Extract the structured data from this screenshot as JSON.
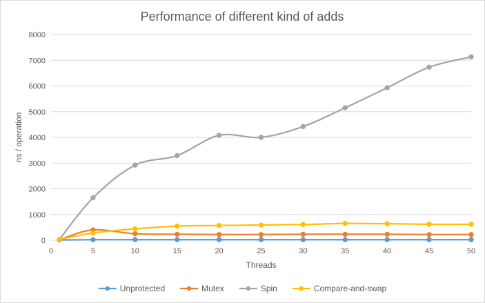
{
  "chart_data": {
    "type": "line",
    "title": "Performance of different kind of adds",
    "xlabel": "Threads",
    "ylabel": "ns / operation",
    "x": [
      1,
      5,
      10,
      15,
      20,
      25,
      30,
      35,
      40,
      45,
      50
    ],
    "xticks": [
      0,
      5,
      10,
      15,
      20,
      25,
      30,
      35,
      40,
      45,
      50
    ],
    "xlim": [
      0,
      50
    ],
    "yticks": [
      0,
      1000,
      2000,
      3000,
      4000,
      5000,
      6000,
      7000,
      8000
    ],
    "ylim": [
      0,
      8000
    ],
    "grid": "horizontal",
    "legend_position": "bottom",
    "smooth": true,
    "series": [
      {
        "name": "Unprotected",
        "color": "#5b9bd5",
        "values": [
          10,
          20,
          20,
          20,
          20,
          20,
          20,
          20,
          20,
          20,
          20
        ]
      },
      {
        "name": "Mutex",
        "color": "#ed7d31",
        "values": [
          20,
          400,
          250,
          230,
          220,
          220,
          230,
          230,
          230,
          220,
          220
        ]
      },
      {
        "name": "Spin",
        "color": "#a5a5a5",
        "values": [
          30,
          1650,
          2920,
          3290,
          4080,
          4000,
          4420,
          5150,
          5930,
          6730,
          7130
        ]
      },
      {
        "name": "Compare-and-swap",
        "color": "#ffc000",
        "values": [
          30,
          280,
          440,
          550,
          570,
          590,
          610,
          650,
          640,
          620,
          620
        ]
      }
    ]
  }
}
